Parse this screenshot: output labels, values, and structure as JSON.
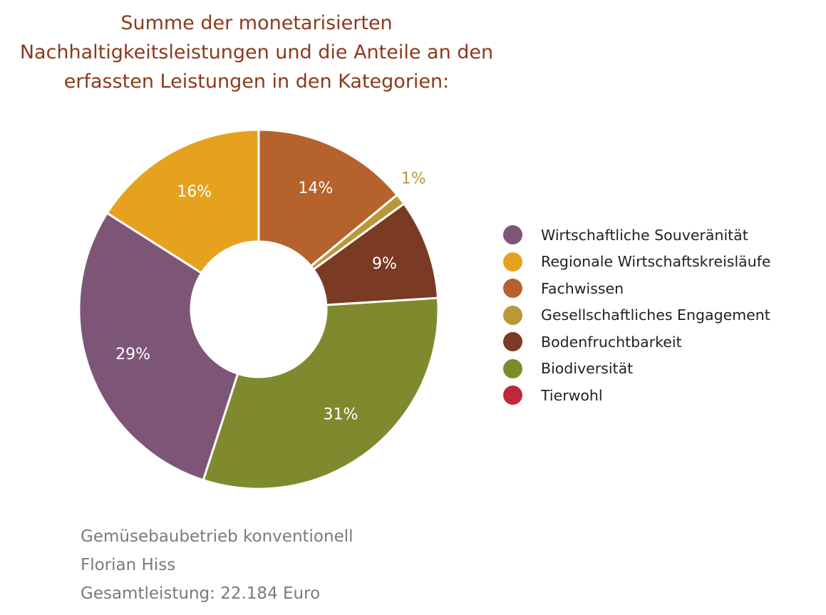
{
  "chart_data": {
    "type": "pie",
    "variant": "donut",
    "title_lines": [
      "Summe der monetarisierten",
      "Nachhaltigkeitsleistungen und die Anteile an den",
      "erfassten Leistungen in den Kategorien:"
    ],
    "slices": [
      {
        "name": "Fachwissen",
        "value": 14,
        "label": "14%",
        "color": "#b5622c"
      },
      {
        "name": "Gesellschaftliches Engagement",
        "value": 1,
        "label": "1%",
        "color": "#b9983a"
      },
      {
        "name": "Bodenfruchtbarkeit",
        "value": 9,
        "label": "9%",
        "color": "#7a3a24"
      },
      {
        "name": "Biodiversität",
        "value": 31,
        "label": "31%",
        "color": "#7f8a2e"
      },
      {
        "name": "Wirtschaftliche Souveränität",
        "value": 29,
        "label": "29%",
        "color": "#7d5677"
      },
      {
        "name": "Regionale Wirtschaftskreisläufe",
        "value": 16,
        "label": "16%",
        "color": "#e6a21f"
      }
    ],
    "legend": [
      {
        "label": "Wirtschaftliche Souveränität",
        "color": "#7d5677"
      },
      {
        "label": "Regionale Wirtschaftskreisläufe",
        "color": "#e6a21f"
      },
      {
        "label": "Fachwissen",
        "color": "#b5622c"
      },
      {
        "label": "Gesellschaftliches Engagement",
        "color": "#b9983a"
      },
      {
        "label": "Bodenfruchtbarkeit",
        "color": "#7a3a24"
      },
      {
        "label": "Biodiversität",
        "color": "#7f8a2e"
      },
      {
        "label": "Tierwohl",
        "color": "#c0283a"
      }
    ],
    "legend_position": "right",
    "footer": [
      "Gemüsebaubetrieb konventionell",
      "Florian Hiss",
      "Gesamtleistung: 22.184 Euro"
    ]
  },
  "colors": {
    "title": "#8b3a1c",
    "footer": "#7a7a7a",
    "outside_label": "#b9983a"
  }
}
